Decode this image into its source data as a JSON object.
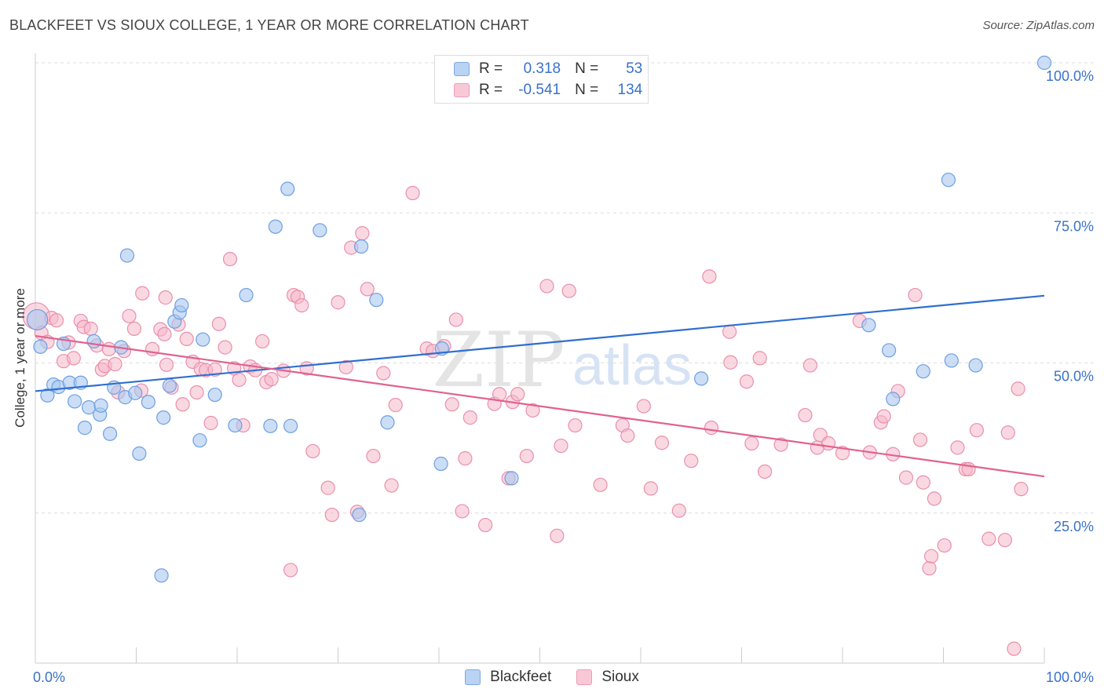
{
  "title": "BLACKFEET VS SIOUX COLLEGE, 1 YEAR OR MORE CORRELATION CHART",
  "source": "Source: ZipAtlas.com",
  "watermark": {
    "zip": "ZIP",
    "atlas": "atlas"
  },
  "legend": {
    "rows": [
      {
        "r_label": "R =",
        "r_value": "0.318",
        "n_label": "N =",
        "n_value": "53"
      },
      {
        "r_label": "R =",
        "r_value": "-0.541",
        "n_label": "N =",
        "n_value": "134"
      }
    ]
  },
  "bottom_legend": [
    "Blackfeet",
    "Sioux"
  ],
  "colors": {
    "blue_fill": "#a9c8f0",
    "blue_stroke": "#6e9fe0",
    "blue_line": "#2f6fcf",
    "pink_fill": "#f6b8cb",
    "pink_stroke": "#ea8fac",
    "pink_line": "#e0628e",
    "tick_text": "#3a72c8"
  },
  "chart_data": {
    "type": "scatter",
    "title": "BLACKFEET VS SIOUX COLLEGE, 1 YEAR OR MORE CORRELATION CHART",
    "xlabel": "",
    "ylabel": "College, 1 year or more",
    "xlim": [
      0,
      100
    ],
    "ylim": [
      0,
      100
    ],
    "x_tick_labels": [
      "0.0%",
      "100.0%"
    ],
    "y_ticks": [
      25,
      50,
      75,
      100
    ],
    "y_tick_labels": [
      "25.0%",
      "50.0%",
      "75.0%",
      "100.0%"
    ],
    "series": [
      {
        "name": "Blackfeet",
        "r": 0.318,
        "n": 53,
        "trend": {
          "x": [
            0,
            100
          ],
          "y": [
            45.3,
            61.2
          ]
        },
        "points": [
          [
            0.2,
            57.2
          ],
          [
            0.5,
            52.7
          ],
          [
            1.2,
            44.6
          ],
          [
            1.8,
            46.4
          ],
          [
            2.3,
            46.0
          ],
          [
            2.8,
            53.2
          ],
          [
            3.4,
            46.7
          ],
          [
            3.9,
            43.6
          ],
          [
            4.5,
            46.7
          ],
          [
            4.9,
            39.2
          ],
          [
            5.3,
            42.6
          ],
          [
            5.8,
            53.6
          ],
          [
            6.4,
            41.4
          ],
          [
            6.5,
            42.9
          ],
          [
            7.4,
            38.2
          ],
          [
            7.8,
            45.9
          ],
          [
            8.5,
            52.6
          ],
          [
            8.9,
            44.3
          ],
          [
            9.1,
            67.9
          ],
          [
            9.9,
            45.0
          ],
          [
            10.3,
            34.9
          ],
          [
            11.2,
            43.5
          ],
          [
            12.5,
            14.6
          ],
          [
            12.7,
            40.9
          ],
          [
            13.3,
            46.2
          ],
          [
            13.8,
            56.9
          ],
          [
            14.3,
            58.4
          ],
          [
            14.5,
            59.6
          ],
          [
            16.3,
            37.1
          ],
          [
            16.6,
            53.9
          ],
          [
            17.8,
            44.7
          ],
          [
            19.8,
            39.6
          ],
          [
            20.9,
            61.3
          ],
          [
            23.3,
            39.5
          ],
          [
            23.8,
            72.7
          ],
          [
            25.0,
            79.0
          ],
          [
            25.3,
            39.5
          ],
          [
            28.2,
            72.1
          ],
          [
            32.1,
            24.7
          ],
          [
            32.3,
            69.4
          ],
          [
            33.8,
            60.5
          ],
          [
            34.9,
            40.1
          ],
          [
            40.2,
            33.2
          ],
          [
            40.3,
            52.4
          ],
          [
            47.2,
            30.8
          ],
          [
            66.0,
            47.4
          ],
          [
            82.6,
            56.3
          ],
          [
            84.6,
            52.1
          ],
          [
            85.0,
            44.0
          ],
          [
            88.0,
            48.6
          ],
          [
            90.5,
            80.5
          ],
          [
            90.8,
            50.4
          ],
          [
            93.2,
            49.6
          ],
          [
            100.0,
            100.0
          ]
        ]
      },
      {
        "name": "Sioux",
        "r": -0.541,
        "n": 134,
        "trend": {
          "x": [
            0,
            100
          ],
          "y": [
            54.5,
            31.1
          ]
        },
        "points": [
          [
            0.1,
            57.8
          ],
          [
            0.6,
            55.0
          ],
          [
            1.2,
            53.5
          ],
          [
            1.6,
            57.5
          ],
          [
            2.1,
            57.1
          ],
          [
            2.8,
            50.3
          ],
          [
            3.3,
            53.4
          ],
          [
            3.8,
            50.8
          ],
          [
            4.5,
            57.0
          ],
          [
            4.8,
            56.0
          ],
          [
            5.5,
            55.7
          ],
          [
            6.1,
            52.9
          ],
          [
            6.6,
            48.9
          ],
          [
            6.9,
            49.5
          ],
          [
            7.3,
            52.3
          ],
          [
            7.9,
            49.8
          ],
          [
            8.2,
            45.1
          ],
          [
            8.8,
            52.0
          ],
          [
            9.3,
            57.8
          ],
          [
            9.8,
            55.7
          ],
          [
            10.5,
            45.4
          ],
          [
            10.6,
            61.6
          ],
          [
            11.6,
            52.3
          ],
          [
            12.4,
            55.6
          ],
          [
            12.8,
            54.8
          ],
          [
            12.9,
            60.9
          ],
          [
            13.0,
            49.7
          ],
          [
            13.5,
            45.9
          ],
          [
            14.2,
            56.4
          ],
          [
            14.6,
            43.1
          ],
          [
            15.0,
            54.0
          ],
          [
            15.6,
            50.2
          ],
          [
            16.0,
            45.1
          ],
          [
            16.4,
            49.0
          ],
          [
            16.9,
            48.8
          ],
          [
            17.4,
            40.0
          ],
          [
            17.8,
            48.9
          ],
          [
            18.2,
            56.5
          ],
          [
            18.8,
            52.6
          ],
          [
            19.3,
            67.3
          ],
          [
            19.7,
            49.1
          ],
          [
            20.2,
            47.2
          ],
          [
            20.6,
            39.6
          ],
          [
            21.3,
            49.4
          ],
          [
            21.8,
            48.8
          ],
          [
            22.5,
            53.6
          ],
          [
            22.9,
            46.8
          ],
          [
            23.4,
            47.3
          ],
          [
            24.6,
            48.7
          ],
          [
            25.3,
            15.5
          ],
          [
            25.6,
            61.3
          ],
          [
            26.0,
            61.0
          ],
          [
            26.4,
            59.6
          ],
          [
            26.9,
            49.1
          ],
          [
            27.5,
            35.3
          ],
          [
            29.0,
            29.2
          ],
          [
            29.4,
            24.7
          ],
          [
            30.0,
            60.1
          ],
          [
            30.8,
            49.3
          ],
          [
            31.3,
            69.2
          ],
          [
            31.9,
            25.2
          ],
          [
            32.4,
            71.6
          ],
          [
            32.9,
            62.3
          ],
          [
            33.5,
            34.5
          ],
          [
            34.5,
            48.3
          ],
          [
            35.3,
            29.6
          ],
          [
            35.7,
            43.0
          ],
          [
            37.4,
            78.3
          ],
          [
            38.8,
            52.4
          ],
          [
            39.4,
            52.0
          ],
          [
            40.5,
            52.8
          ],
          [
            41.3,
            43.1
          ],
          [
            41.7,
            57.2
          ],
          [
            42.3,
            25.3
          ],
          [
            42.6,
            34.1
          ],
          [
            43.1,
            40.9
          ],
          [
            44.6,
            23.0
          ],
          [
            45.5,
            43.2
          ],
          [
            46.0,
            44.8
          ],
          [
            46.9,
            30.8
          ],
          [
            47.3,
            43.5
          ],
          [
            47.8,
            44.8
          ],
          [
            48.7,
            34.5
          ],
          [
            49.3,
            42.1
          ],
          [
            50.7,
            62.8
          ],
          [
            51.7,
            21.2
          ],
          [
            52.1,
            36.2
          ],
          [
            52.9,
            62.0
          ],
          [
            53.5,
            39.6
          ],
          [
            56.0,
            29.7
          ],
          [
            58.2,
            39.6
          ],
          [
            58.7,
            37.9
          ],
          [
            60.3,
            42.8
          ],
          [
            61.0,
            29.1
          ],
          [
            62.1,
            36.7
          ],
          [
            63.8,
            25.4
          ],
          [
            65.0,
            33.7
          ],
          [
            66.8,
            64.4
          ],
          [
            67.0,
            39.2
          ],
          [
            68.8,
            55.2
          ],
          [
            68.9,
            50.1
          ],
          [
            70.5,
            46.9
          ],
          [
            71.0,
            36.6
          ],
          [
            71.8,
            50.8
          ],
          [
            72.3,
            31.9
          ],
          [
            73.9,
            36.4
          ],
          [
            76.3,
            41.3
          ],
          [
            76.8,
            49.6
          ],
          [
            77.5,
            35.9
          ],
          [
            77.8,
            38.0
          ],
          [
            78.6,
            36.6
          ],
          [
            80.0,
            35.0
          ],
          [
            81.7,
            57.0
          ],
          [
            82.7,
            35.1
          ],
          [
            83.8,
            40.1
          ],
          [
            84.1,
            41.1
          ],
          [
            85.0,
            34.8
          ],
          [
            85.5,
            45.3
          ],
          [
            86.3,
            30.9
          ],
          [
            87.2,
            61.3
          ],
          [
            87.7,
            37.2
          ],
          [
            88.0,
            30.1
          ],
          [
            88.6,
            15.8
          ],
          [
            88.8,
            17.8
          ],
          [
            89.1,
            27.4
          ],
          [
            90.1,
            19.6
          ],
          [
            91.4,
            35.9
          ],
          [
            92.2,
            32.3
          ],
          [
            92.5,
            32.3
          ],
          [
            93.3,
            38.8
          ],
          [
            94.5,
            20.7
          ],
          [
            96.1,
            20.5
          ],
          [
            96.4,
            38.4
          ],
          [
            97.0,
            2.4
          ],
          [
            97.4,
            45.7
          ],
          [
            97.7,
            29.0
          ]
        ]
      }
    ]
  }
}
